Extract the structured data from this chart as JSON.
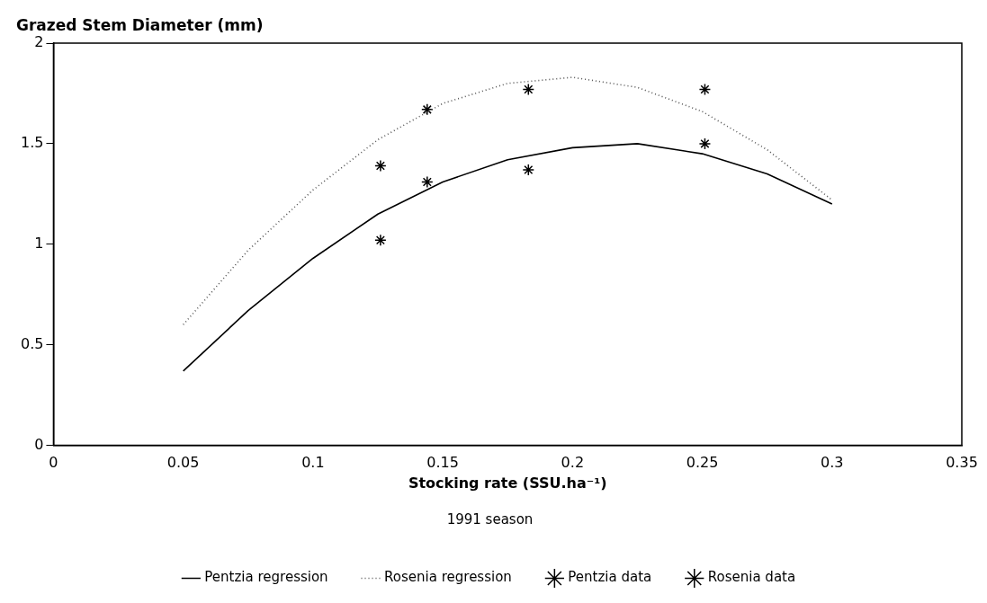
{
  "chart_data": {
    "type": "line",
    "xlabel": "Stocking rate (SSU.ha⁻¹)",
    "ylabel": "Grazed Stem Diameter (mm)",
    "legend_title": "1991 season",
    "legend": "bottom",
    "grid": false,
    "xlim": [
      0,
      0.35
    ],
    "xticks": [
      0,
      0.05,
      0.1,
      0.15,
      0.2,
      0.25,
      0.3,
      0.35
    ],
    "ylim": [
      0,
      2
    ],
    "yticks": [
      0,
      0.5,
      1,
      1.5,
      2
    ],
    "series": [
      {
        "name": "Pentzia regression",
        "color": "#000000",
        "line_style": "solid",
        "marker": "none",
        "x": [
          0.05,
          0.075,
          0.1,
          0.125,
          0.15,
          0.175,
          0.2,
          0.225,
          0.25,
          0.275,
          0.3
        ],
        "values": [
          0.37,
          0.67,
          0.93,
          1.15,
          1.31,
          1.42,
          1.48,
          1.5,
          1.45,
          1.35,
          1.2
        ]
      },
      {
        "name": "Rosenia regression",
        "color": "#555555",
        "line_style": "dotted",
        "marker": "none",
        "x": [
          0.05,
          0.075,
          0.1,
          0.125,
          0.15,
          0.175,
          0.2,
          0.225,
          0.25,
          0.275,
          0.3
        ],
        "values": [
          0.6,
          0.97,
          1.27,
          1.52,
          1.7,
          1.8,
          1.83,
          1.78,
          1.66,
          1.47,
          1.22
        ]
      },
      {
        "name": "Pentzia data",
        "type": "scatter",
        "color": "#000000",
        "marker": "cross",
        "x": [
          0.126,
          0.144,
          0.183,
          0.251
        ],
        "values": [
          1.02,
          1.31,
          1.37,
          1.5
        ]
      },
      {
        "name": "Rosenia data",
        "type": "scatter",
        "color": "#000000",
        "marker": "cross",
        "x": [
          0.126,
          0.144,
          0.183,
          0.251
        ],
        "values": [
          1.39,
          1.67,
          1.77,
          1.77
        ]
      }
    ]
  }
}
